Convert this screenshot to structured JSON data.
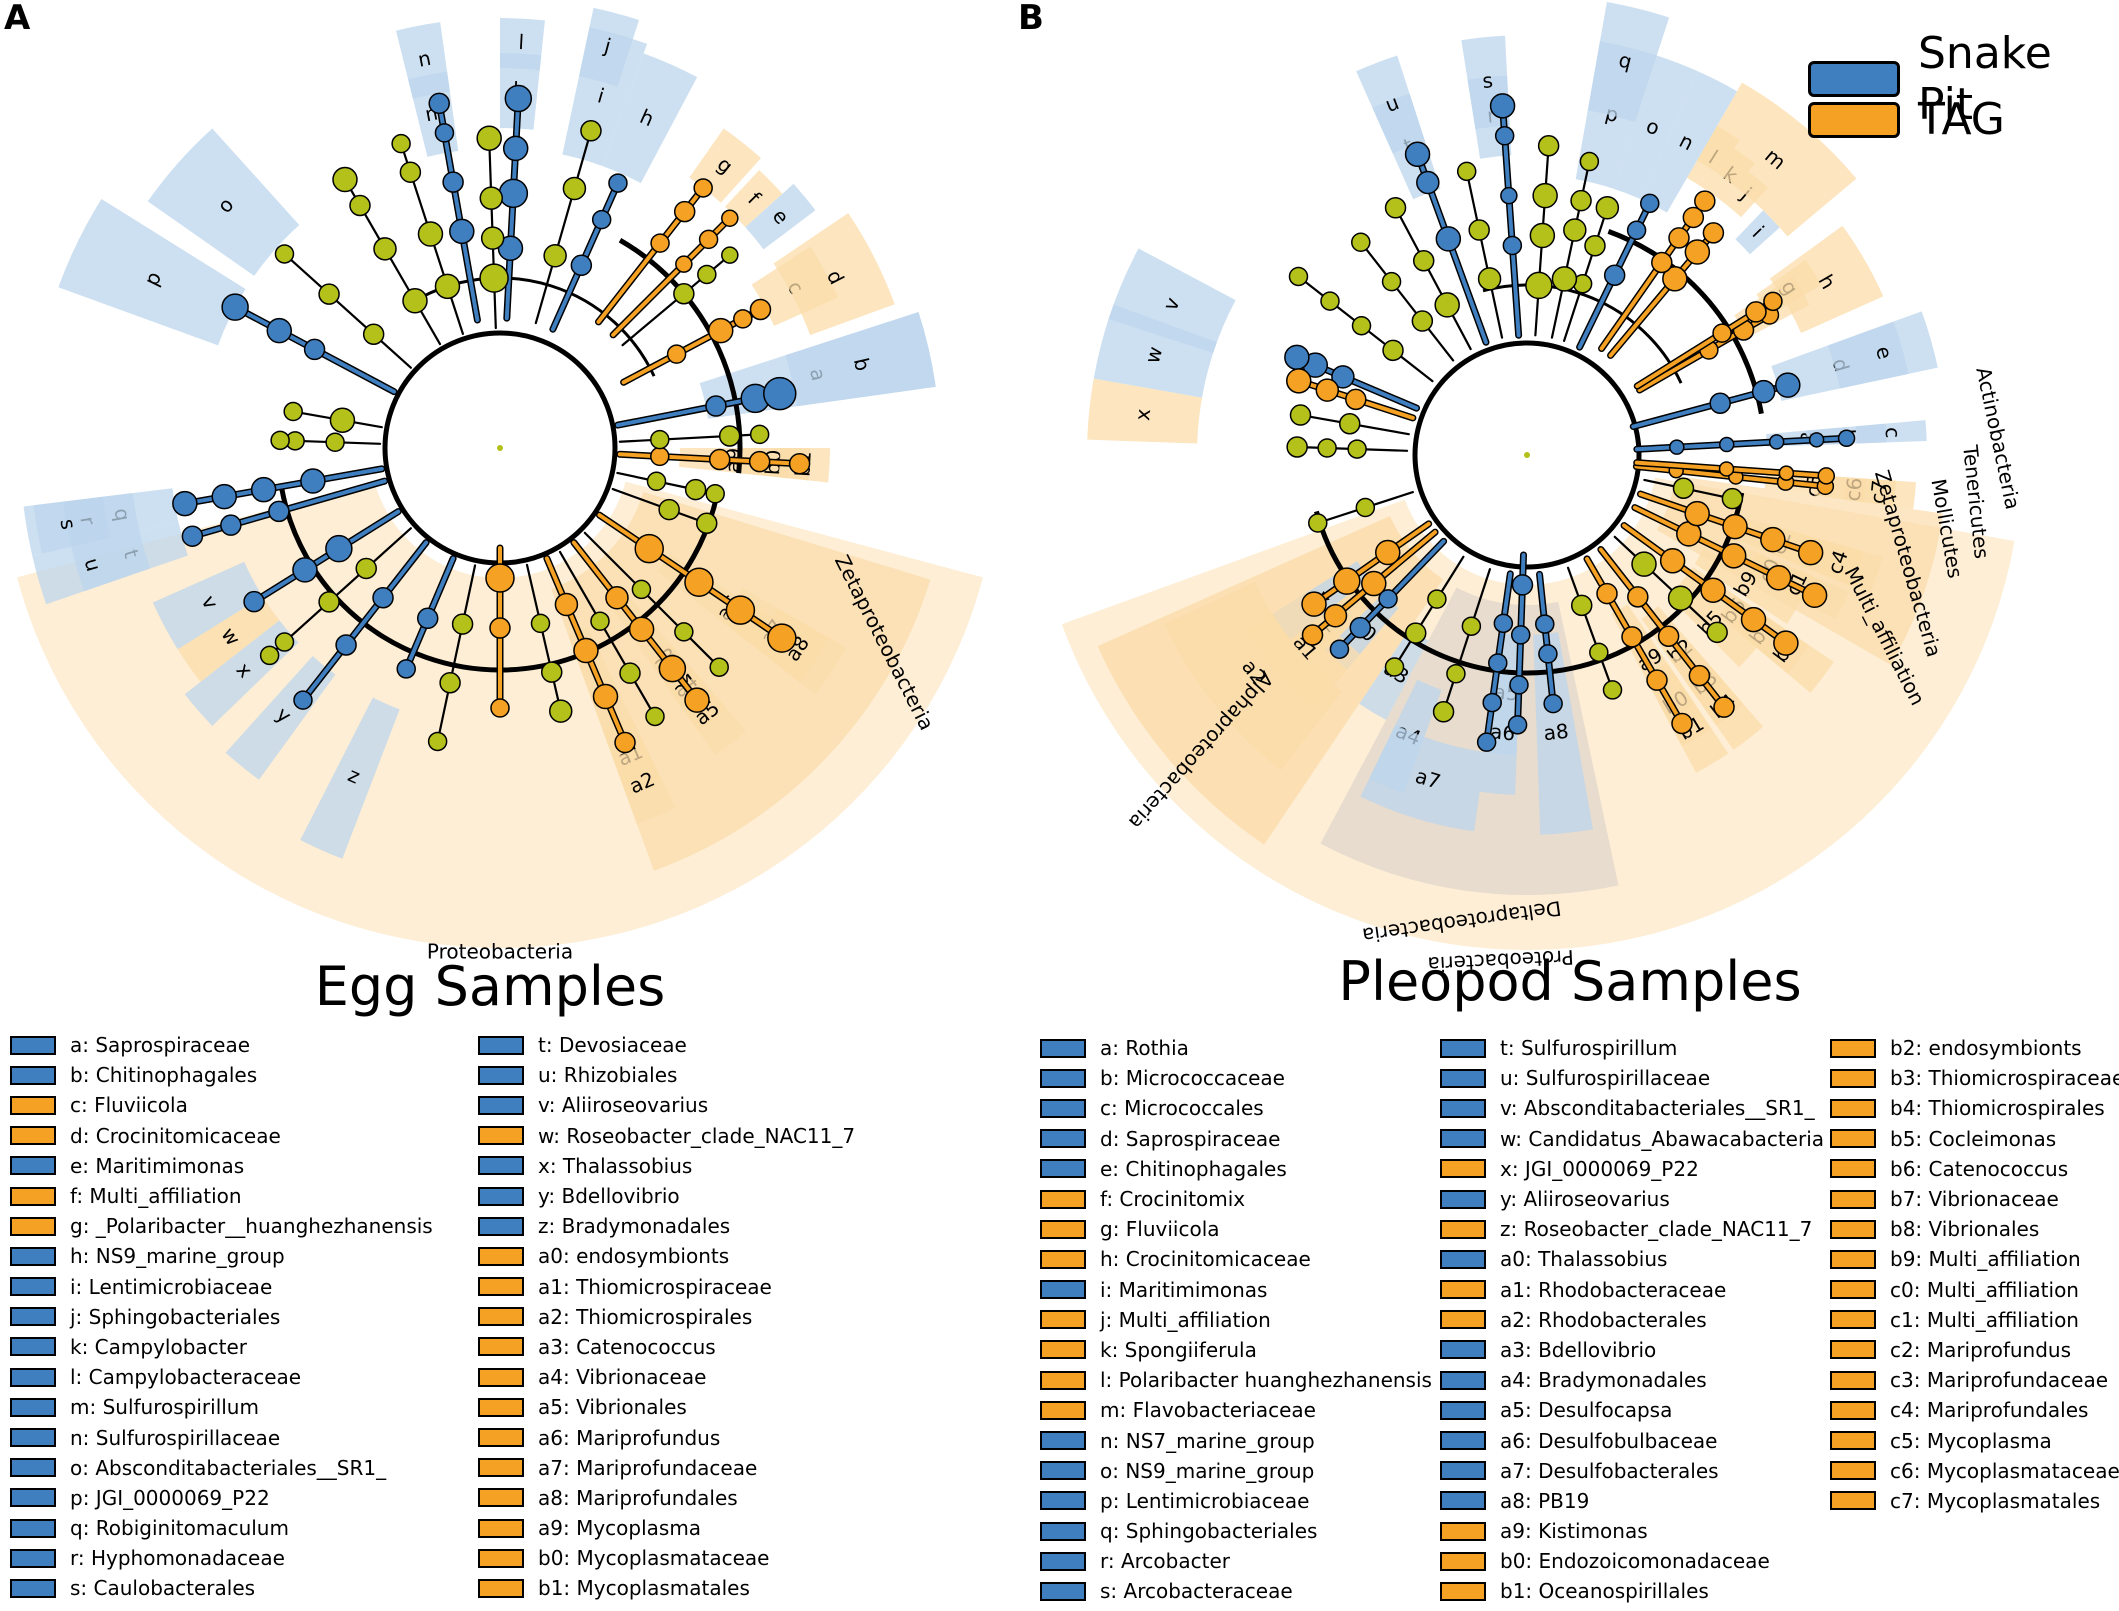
{
  "colors": {
    "snake": "#3f7fbf",
    "tag": "#f5a123",
    "node": "#b3c11a",
    "snake_shade": "#bcd5ec",
    "tag_shade": "#fbdcaa",
    "clade_bg": "#fdeed5"
  },
  "key": [
    {
      "label": "Snake Pit",
      "group": "snake"
    },
    {
      "label": "TAG",
      "group": "tag"
    }
  ],
  "panels": [
    {
      "letter": "A",
      "title": "Egg Samples",
      "clade_labels": [
        "Proteobacteria",
        "Zetaproteobacteria"
      ],
      "shade_labels": [
        "a",
        "b",
        "c",
        "d",
        "e",
        "f",
        "g",
        "h",
        "i",
        "j",
        "k",
        "l",
        "m",
        "n",
        "o",
        "p",
        "q",
        "r",
        "s",
        "t",
        "u",
        "v",
        "w",
        "x",
        "y",
        "z",
        "a0",
        "a1",
        "a2",
        "a3",
        "a4",
        "a5",
        "a6",
        "a7",
        "a8",
        "a9",
        "b0",
        "b1"
      ],
      "legend": [
        [
          {
            "label": "a: Saprospiraceae",
            "group": "snake"
          },
          {
            "label": "b: Chitinophagales",
            "group": "snake"
          },
          {
            "label": "c: Fluviicola",
            "group": "tag"
          },
          {
            "label": "d: Crocinitomicaceae",
            "group": "tag"
          },
          {
            "label": "e: Maritimimonas",
            "group": "snake"
          },
          {
            "label": "f: Multi_affiliation",
            "group": "tag"
          },
          {
            "label": "g: _Polaribacter__huanghezhanensis",
            "group": "tag"
          },
          {
            "label": "h: NS9_marine_group",
            "group": "snake"
          },
          {
            "label": "i: Lentimicrobiaceae",
            "group": "snake"
          },
          {
            "label": "j: Sphingobacteriales",
            "group": "snake"
          },
          {
            "label": "k: Campylobacter",
            "group": "snake"
          },
          {
            "label": "l: Campylobacteraceae",
            "group": "snake"
          },
          {
            "label": "m: Sulfurospirillum",
            "group": "snake"
          },
          {
            "label": "n: Sulfurospirillaceae",
            "group": "snake"
          },
          {
            "label": "o: Absconditabacteriales__SR1_",
            "group": "snake"
          },
          {
            "label": "p: JGI_0000069_P22",
            "group": "snake"
          },
          {
            "label": "q: Robiginitomaculum",
            "group": "snake"
          },
          {
            "label": "r: Hyphomonadaceae",
            "group": "snake"
          },
          {
            "label": "s: Caulobacterales",
            "group": "snake"
          }
        ],
        [
          {
            "label": "t: Devosiaceae",
            "group": "snake"
          },
          {
            "label": "u: Rhizobiales",
            "group": "snake"
          },
          {
            "label": "v: Aliiroseovarius",
            "group": "snake"
          },
          {
            "label": "w: Roseobacter_clade_NAC11_7",
            "group": "tag"
          },
          {
            "label": "x: Thalassobius",
            "group": "snake"
          },
          {
            "label": "y: Bdellovibrio",
            "group": "snake"
          },
          {
            "label": "z: Bradymonadales",
            "group": "snake"
          },
          {
            "label": "a0: endosymbionts",
            "group": "tag"
          },
          {
            "label": "a1: Thiomicrospiraceae",
            "group": "tag"
          },
          {
            "label": "a2: Thiomicrospirales",
            "group": "tag"
          },
          {
            "label": "a3: Catenococcus",
            "group": "tag"
          },
          {
            "label": "a4: Vibrionaceae",
            "group": "tag"
          },
          {
            "label": "a5: Vibrionales",
            "group": "tag"
          },
          {
            "label": "a6: Mariprofundus",
            "group": "tag"
          },
          {
            "label": "a7: Mariprofundaceae",
            "group": "tag"
          },
          {
            "label": "a8: Mariprofundales",
            "group": "tag"
          },
          {
            "label": "a9: Mycoplasma",
            "group": "tag"
          },
          {
            "label": "b0: Mycoplasmataceae",
            "group": "tag"
          },
          {
            "label": "b1: Mycoplasmatales",
            "group": "tag"
          }
        ]
      ]
    },
    {
      "letter": "B",
      "title": "Pleopod Samples",
      "clade_labels": [
        "Proteobacteria",
        "Deltaproteobacteria",
        "Alphaproteobacteria",
        "Zetaproteobacteria",
        "Multi_affiliation",
        "Mollicutes",
        "Tenericutes",
        "Actinobacteria"
      ],
      "shade_labels": [
        "a",
        "b",
        "c",
        "d",
        "e",
        "f",
        "g",
        "h",
        "i",
        "j",
        "k",
        "l",
        "m",
        "n",
        "o",
        "p",
        "q",
        "r",
        "s",
        "t",
        "u",
        "v",
        "w",
        "x",
        "y",
        "z",
        "a0",
        "a1",
        "a2",
        "a3",
        "a4",
        "a5",
        "a6",
        "a7",
        "a8",
        "a9",
        "b0",
        "b1",
        "b2",
        "b3",
        "b4",
        "b5",
        "b6",
        "b7",
        "b8",
        "b9",
        "c0",
        "c1",
        "c2",
        "c3",
        "c4",
        "c5",
        "c6",
        "c7"
      ],
      "legend": [
        [
          {
            "label": "a: Rothia",
            "group": "snake"
          },
          {
            "label": "b: Micrococcaceae",
            "group": "snake"
          },
          {
            "label": "c: Micrococcales",
            "group": "snake"
          },
          {
            "label": "d: Saprospiraceae",
            "group": "snake"
          },
          {
            "label": "e: Chitinophagales",
            "group": "snake"
          },
          {
            "label": "f: Crocinitomix",
            "group": "tag"
          },
          {
            "label": "g: Fluviicola",
            "group": "tag"
          },
          {
            "label": "h: Crocinitomicaceae",
            "group": "tag"
          },
          {
            "label": "i: Maritimimonas",
            "group": "snake"
          },
          {
            "label": "j: Multi_affiliation",
            "group": "tag"
          },
          {
            "label": "k: Spongiiferula",
            "group": "tag"
          },
          {
            "label": "l: Polaribacter huanghezhanensis",
            "group": "tag"
          },
          {
            "label": "m: Flavobacteriaceae",
            "group": "tag"
          },
          {
            "label": "n: NS7_marine_group",
            "group": "snake"
          },
          {
            "label": "o: NS9_marine_group",
            "group": "snake"
          },
          {
            "label": "p: Lentimicrobiaceae",
            "group": "snake"
          },
          {
            "label": "q: Sphingobacteriales",
            "group": "snake"
          },
          {
            "label": "r: Arcobacter",
            "group": "snake"
          },
          {
            "label": "s: Arcobacteraceae",
            "group": "snake"
          }
        ],
        [
          {
            "label": "t: Sulfurospirillum",
            "group": "snake"
          },
          {
            "label": "u: Sulfurospirillaceae",
            "group": "snake"
          },
          {
            "label": "v: Absconditabacteriales__SR1_",
            "group": "snake"
          },
          {
            "label": "w: Candidatus_Abawacabacteria",
            "group": "snake"
          },
          {
            "label": "x: JGI_0000069_P22",
            "group": "tag"
          },
          {
            "label": "y: Aliiroseovarius",
            "group": "snake"
          },
          {
            "label": "z: Roseobacter_clade_NAC11_7",
            "group": "tag"
          },
          {
            "label": "a0: Thalassobius",
            "group": "snake"
          },
          {
            "label": "a1: Rhodobacteraceae",
            "group": "tag"
          },
          {
            "label": "a2: Rhodobacterales",
            "group": "tag"
          },
          {
            "label": "a3: Bdellovibrio",
            "group": "snake"
          },
          {
            "label": "a4: Bradymonadales",
            "group": "snake"
          },
          {
            "label": "a5: Desulfocapsa",
            "group": "snake"
          },
          {
            "label": "a6: Desulfobulbaceae",
            "group": "snake"
          },
          {
            "label": "a7: Desulfobacterales",
            "group": "snake"
          },
          {
            "label": "a8: PB19",
            "group": "snake"
          },
          {
            "label": "a9: Kistimonas",
            "group": "tag"
          },
          {
            "label": "b0: Endozoicomonadaceae",
            "group": "tag"
          },
          {
            "label": "b1: Oceanospirillales",
            "group": "tag"
          }
        ],
        [
          {
            "label": "b2: endosymbionts",
            "group": "tag"
          },
          {
            "label": "b3: Thiomicrospiraceae",
            "group": "tag"
          },
          {
            "label": "b4: Thiomicrospirales",
            "group": "tag"
          },
          {
            "label": "b5: Cocleimonas",
            "group": "tag"
          },
          {
            "label": "b6: Catenococcus",
            "group": "tag"
          },
          {
            "label": "b7: Vibrionaceae",
            "group": "tag"
          },
          {
            "label": "b8: Vibrionales",
            "group": "tag"
          },
          {
            "label": "b9: Multi_affiliation",
            "group": "tag"
          },
          {
            "label": "c0: Multi_affiliation",
            "group": "tag"
          },
          {
            "label": "c1: Multi_affiliation",
            "group": "tag"
          },
          {
            "label": "c2: Mariprofundus",
            "group": "tag"
          },
          {
            "label": "c3: Mariprofundaceae",
            "group": "tag"
          },
          {
            "label": "c4: Mariprofundales",
            "group": "tag"
          },
          {
            "label": "c5: Mycoplasma",
            "group": "tag"
          },
          {
            "label": "c6: Mycoplasmataceae",
            "group": "tag"
          },
          {
            "label": "c7: Mycoplasmatales",
            "group": "tag"
          }
        ]
      ]
    }
  ]
}
